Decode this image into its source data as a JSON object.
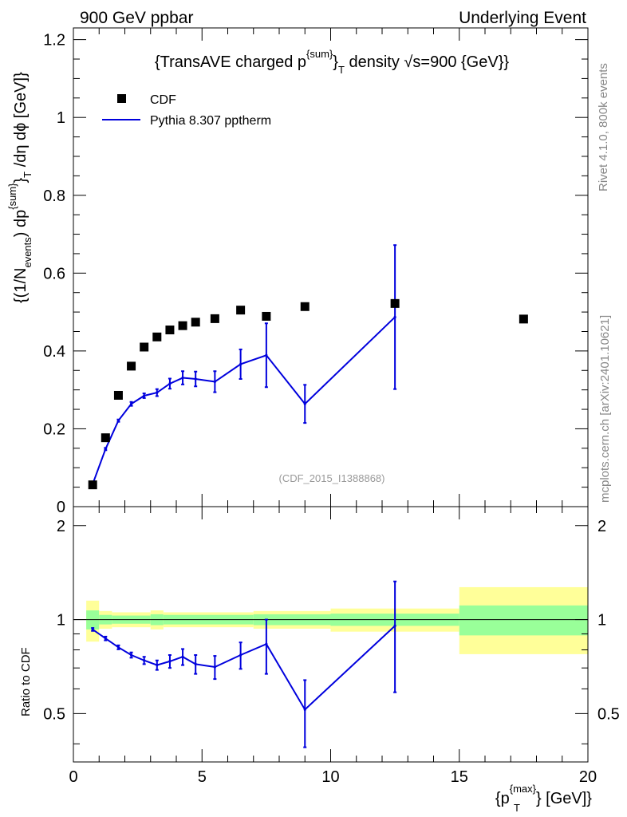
{
  "header": {
    "left": "900 GeV ppbar",
    "right": "Underlying Event"
  },
  "side": {
    "rivet": "Rivet 4.1.0,  800k events",
    "mcplots": "mcplots.cern.ch [arXiv:2401.10621]"
  },
  "chart_data": {
    "type": "scatter",
    "title": {
      "main": "{TransAVE charged p",
      "sup": "{sum}",
      "close": "}",
      "sub": "T",
      "rest": " density √s=900 {GeV}}"
    },
    "watermark": "(CDF_2015_I1388868)",
    "ylabel": {
      "p1": "{(1/N",
      "sub1": "events",
      "p2": ") dp",
      "sup2": "{sum}",
      "p3": "}",
      "sub3": "T",
      "p4": " /dη  dϕ [GeV]}"
    },
    "xlabel": {
      "p1": "{p",
      "sup": "{max}",
      "sub": "T",
      "p2": "} [GeV]}"
    },
    "ratio_ylabel": "Ratio to CDF",
    "xlim": [
      0,
      20
    ],
    "ylim": [
      0,
      1.23
    ],
    "ratio_ylim": [
      0.35,
      2.3
    ],
    "x_ticks": [
      "0",
      "5",
      "10",
      "15",
      "20"
    ],
    "y_ticks": [
      "0",
      "0.2",
      "0.4",
      "0.6",
      "0.8",
      "1",
      "1.2"
    ],
    "ratio_y_ticks": [
      "0.5",
      "1",
      "2"
    ],
    "legend": {
      "position": "top-left",
      "cdf": "CDF",
      "pythia": "Pythia 8.307 pptherm"
    },
    "colors": {
      "mc": "#0000dd",
      "band_inner": "#99ff99",
      "band_outer": "#ffff99",
      "data": "#000000"
    },
    "cdf": {
      "x": [
        0.75,
        1.25,
        1.75,
        2.25,
        2.75,
        3.25,
        3.75,
        4.25,
        4.75,
        5.5,
        6.5,
        7.5,
        9.0,
        12.5,
        17.5
      ],
      "y": [
        0.056,
        0.177,
        0.286,
        0.361,
        0.41,
        0.436,
        0.454,
        0.465,
        0.474,
        0.483,
        0.505,
        0.489,
        0.514,
        0.522,
        0.482
      ]
    },
    "pythia": {
      "x": [
        0.75,
        1.25,
        1.75,
        2.25,
        2.75,
        3.25,
        3.75,
        4.25,
        4.75,
        5.5,
        6.5,
        7.5,
        9.0,
        12.5
      ],
      "y": [
        0.058,
        0.148,
        0.221,
        0.264,
        0.285,
        0.293,
        0.316,
        0.331,
        0.328,
        0.321,
        0.366,
        0.389,
        0.264,
        0.487
      ],
      "err": [
        0.002,
        0.003,
        0.003,
        0.005,
        0.006,
        0.009,
        0.013,
        0.017,
        0.019,
        0.027,
        0.038,
        0.082,
        0.049,
        0.185
      ]
    },
    "ratio": {
      "x": [
        0.75,
        1.25,
        1.75,
        2.25,
        2.75,
        3.25,
        3.75,
        4.25,
        4.75,
        5.5,
        6.5,
        7.5,
        9.0,
        12.5
      ],
      "y": [
        0.93,
        0.87,
        0.815,
        0.77,
        0.74,
        0.715,
        0.735,
        0.76,
        0.72,
        0.705,
        0.77,
        0.835,
        0.515,
        0.955
      ],
      "err": [
        0.01,
        0.012,
        0.012,
        0.015,
        0.02,
        0.025,
        0.035,
        0.045,
        0.05,
        0.06,
        0.075,
        0.165,
        0.125,
        0.37
      ]
    },
    "bands": [
      {
        "x0": 0.5,
        "x1": 1.0,
        "inner": [
          0.93,
          1.07
        ],
        "outer": [
          0.85,
          1.15
        ]
      },
      {
        "x0": 1.0,
        "x1": 1.5,
        "inner": [
          0.965,
          1.035
        ],
        "outer": [
          0.935,
          1.065
        ]
      },
      {
        "x0": 1.5,
        "x1": 3.0,
        "inner": [
          0.97,
          1.03
        ],
        "outer": [
          0.945,
          1.055
        ]
      },
      {
        "x0": 3.0,
        "x1": 3.5,
        "inner": [
          0.96,
          1.04
        ],
        "outer": [
          0.93,
          1.07
        ]
      },
      {
        "x0": 3.5,
        "x1": 7.0,
        "inner": [
          0.965,
          1.035
        ],
        "outer": [
          0.945,
          1.055
        ]
      },
      {
        "x0": 7.0,
        "x1": 10.0,
        "inner": [
          0.96,
          1.04
        ],
        "outer": [
          0.935,
          1.065
        ]
      },
      {
        "x0": 10.0,
        "x1": 15.0,
        "inner": [
          0.955,
          1.045
        ],
        "outer": [
          0.915,
          1.085
        ]
      },
      {
        "x0": 15.0,
        "x1": 20.0,
        "inner": [
          0.89,
          1.11
        ],
        "outer": [
          0.775,
          1.27
        ]
      }
    ]
  }
}
